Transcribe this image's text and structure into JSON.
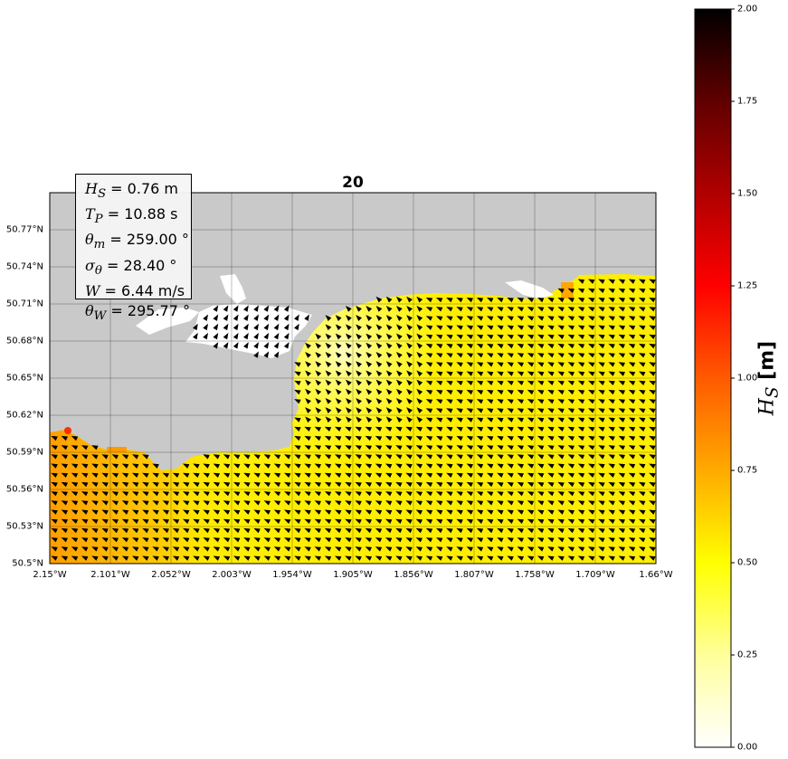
{
  "title": "20",
  "info": {
    "hs": {
      "symbol": "H",
      "sub": "S",
      "text": " = 0.76 m"
    },
    "tp": {
      "symbol": "T",
      "sub": "P",
      "text": " = 10.88 s"
    },
    "theta_m": {
      "symbol": "θ",
      "sub": "m",
      "text": " = 259.00 °"
    },
    "sigma_theta": {
      "symbol": "σ",
      "sub": "θ",
      "text": " = 28.40 °"
    },
    "w": {
      "symbol": "W",
      "sub": "",
      "text": " = 6.44 m/s"
    },
    "theta_w": {
      "symbol": "θ",
      "sub": "W",
      "text": " = 295.77 °"
    }
  },
  "map": {
    "lat_labels": [
      "50.77°N",
      "50.74°N",
      "50.71°N",
      "50.68°N",
      "50.65°N",
      "50.62°N",
      "50.59°N",
      "50.56°N",
      "50.53°N",
      "50.5°N"
    ],
    "lon_labels": [
      "2.15°W",
      "2.101°W",
      "2.052°W",
      "2.003°W",
      "1.954°W",
      "1.905°W",
      "1.856°W",
      "1.807°W",
      "1.758°W",
      "1.709°W",
      "1.66°W"
    ],
    "land_color": "#c9c9c9",
    "grid": true,
    "arrow_color": "#000000"
  },
  "colorbar": {
    "ticks": [
      "0.00",
      "0.25",
      "0.50",
      "0.75",
      "1.00",
      "1.25",
      "1.50",
      "1.75",
      "2.00"
    ],
    "range": [
      0,
      2
    ],
    "colormap": "afmhot_r",
    "label_symbol": "H",
    "label_sub": "S",
    "label_unit": " [m]"
  }
}
